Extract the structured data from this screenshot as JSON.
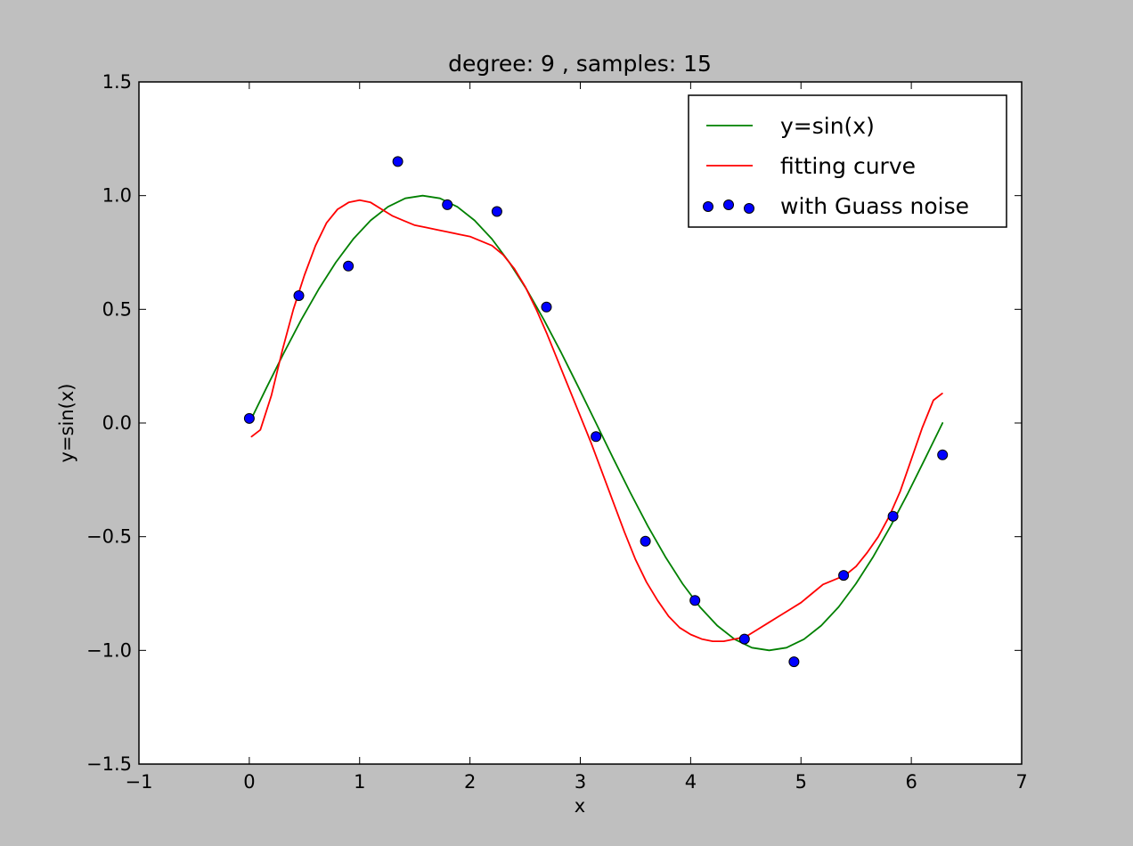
{
  "chart_data": {
    "type": "line",
    "title": "degree: 9 , samples: 15",
    "xlabel": "x",
    "ylabel": "y=sin(x)",
    "xlim": [
      -1,
      7
    ],
    "ylim": [
      -1.5,
      1.5
    ],
    "xticks": [
      -1,
      0,
      1,
      2,
      3,
      4,
      5,
      6,
      7
    ],
    "xtick_labels": [
      "−1",
      "0",
      "1",
      "2",
      "3",
      "4",
      "5",
      "6",
      "7"
    ],
    "yticks": [
      -1.5,
      -1.0,
      -0.5,
      0.0,
      0.5,
      1.0,
      1.5
    ],
    "ytick_labels": [
      "−1.5",
      "−1.0",
      "−0.5",
      "0.0",
      "0.5",
      "1.0",
      "1.5"
    ],
    "grid": false,
    "legend_position": "top-right",
    "series": [
      {
        "name": "y=sin(x)",
        "kind": "line",
        "color": "#008000",
        "x": [
          0.0,
          0.157,
          0.314,
          0.471,
          0.628,
          0.785,
          0.942,
          1.1,
          1.257,
          1.414,
          1.571,
          1.728,
          1.885,
          2.042,
          2.199,
          2.356,
          2.513,
          2.67,
          2.827,
          2.985,
          3.142,
          3.299,
          3.456,
          3.613,
          3.77,
          3.927,
          4.084,
          4.241,
          4.398,
          4.555,
          4.712,
          4.869,
          5.027,
          5.184,
          5.341,
          5.498,
          5.655,
          5.812,
          5.969,
          6.126,
          6.283
        ],
        "y": [
          0.0,
          0.156,
          0.309,
          0.454,
          0.588,
          0.707,
          0.809,
          0.891,
          0.951,
          0.988,
          1.0,
          0.988,
          0.951,
          0.891,
          0.809,
          0.707,
          0.588,
          0.454,
          0.309,
          0.156,
          0.0,
          -0.156,
          -0.309,
          -0.454,
          -0.588,
          -0.707,
          -0.809,
          -0.891,
          -0.951,
          -0.988,
          -1.0,
          -0.988,
          -0.951,
          -0.891,
          -0.809,
          -0.707,
          -0.588,
          -0.454,
          -0.309,
          -0.156,
          0.0
        ]
      },
      {
        "name": "fitting curve",
        "kind": "line",
        "color": "#ff0000",
        "x": [
          0.02,
          0.1,
          0.2,
          0.3,
          0.4,
          0.5,
          0.6,
          0.7,
          0.8,
          0.9,
          1.0,
          1.1,
          1.2,
          1.3,
          1.4,
          1.5,
          1.6,
          1.7,
          1.8,
          1.9,
          2.0,
          2.1,
          2.2,
          2.3,
          2.4,
          2.5,
          2.6,
          2.7,
          2.8,
          2.9,
          3.0,
          3.1,
          3.2,
          3.3,
          3.4,
          3.5,
          3.6,
          3.7,
          3.8,
          3.9,
          4.0,
          4.1,
          4.2,
          4.3,
          4.4,
          4.5,
          4.6,
          4.7,
          4.8,
          4.9,
          5.0,
          5.1,
          5.2,
          5.3,
          5.4,
          5.5,
          5.6,
          5.7,
          5.8,
          5.9,
          6.0,
          6.1,
          6.2,
          6.28
        ],
        "y": [
          -0.06,
          -0.03,
          0.12,
          0.32,
          0.5,
          0.65,
          0.78,
          0.88,
          0.94,
          0.97,
          0.98,
          0.97,
          0.94,
          0.91,
          0.89,
          0.87,
          0.86,
          0.85,
          0.84,
          0.83,
          0.82,
          0.8,
          0.78,
          0.74,
          0.68,
          0.6,
          0.5,
          0.39,
          0.27,
          0.15,
          0.03,
          -0.09,
          -0.22,
          -0.35,
          -0.48,
          -0.6,
          -0.7,
          -0.78,
          -0.85,
          -0.9,
          -0.93,
          -0.95,
          -0.96,
          -0.96,
          -0.95,
          -0.94,
          -0.91,
          -0.88,
          -0.85,
          -0.82,
          -0.79,
          -0.75,
          -0.71,
          -0.69,
          -0.67,
          -0.63,
          -0.57,
          -0.5,
          -0.41,
          -0.3,
          -0.16,
          -0.02,
          0.1,
          0.13
        ]
      },
      {
        "name": "with Guass noise",
        "kind": "scatter",
        "color": "#0000ff",
        "x": [
          0.0,
          0.449,
          0.898,
          1.346,
          1.795,
          2.244,
          2.693,
          3.142,
          3.59,
          4.039,
          4.488,
          4.937,
          5.386,
          5.834,
          6.283
        ],
        "y": [
          0.02,
          0.56,
          0.69,
          1.15,
          0.96,
          0.93,
          0.51,
          -0.06,
          -0.52,
          -0.78,
          -0.95,
          -1.05,
          -0.67,
          -0.41,
          -0.14
        ]
      }
    ]
  }
}
